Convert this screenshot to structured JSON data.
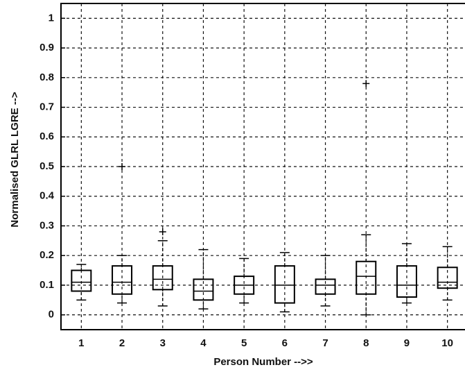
{
  "chart_data": {
    "type": "box",
    "xlabel": "Person Number -->>",
    "ylabel": "Normalised GLRL LGRE -->",
    "categories": [
      "1",
      "2",
      "3",
      "4",
      "5",
      "6",
      "7",
      "8",
      "9",
      "10"
    ],
    "boxes": [
      {
        "whislo": 0.05,
        "q1": 0.08,
        "median": 0.11,
        "q3": 0.15,
        "whishi": 0.17,
        "outliers": []
      },
      {
        "whislo": 0.04,
        "q1": 0.07,
        "median": 0.11,
        "q3": 0.165,
        "whishi": 0.2,
        "outliers": [
          0.5
        ]
      },
      {
        "whislo": 0.03,
        "q1": 0.085,
        "median": 0.12,
        "q3": 0.165,
        "whishi": 0.25,
        "outliers": [
          0.28
        ]
      },
      {
        "whislo": 0.02,
        "q1": 0.05,
        "median": 0.08,
        "q3": 0.12,
        "whishi": 0.22,
        "outliers": []
      },
      {
        "whislo": 0.04,
        "q1": 0.07,
        "median": 0.1,
        "q3": 0.13,
        "whishi": 0.19,
        "outliers": []
      },
      {
        "whislo": 0.01,
        "q1": 0.04,
        "median": 0.1,
        "q3": 0.165,
        "whishi": 0.21,
        "outliers": []
      },
      {
        "whislo": 0.03,
        "q1": 0.07,
        "median": 0.1,
        "q3": 0.12,
        "whishi": 0.2,
        "outliers": []
      },
      {
        "whislo": 0.0,
        "q1": 0.07,
        "median": 0.13,
        "q3": 0.18,
        "whishi": 0.27,
        "outliers": [
          0.78
        ]
      },
      {
        "whislo": 0.04,
        "q1": 0.06,
        "median": 0.1,
        "q3": 0.165,
        "whishi": 0.24,
        "outliers": []
      },
      {
        "whislo": 0.05,
        "q1": 0.09,
        "median": 0.11,
        "q3": 0.16,
        "whishi": 0.23,
        "outliers": []
      }
    ],
    "color": "#000000",
    "ylim": [
      -0.05,
      1.05
    ],
    "yticks": [
      0,
      0.1,
      0.2,
      0.3,
      0.4,
      0.5,
      0.6,
      0.7,
      0.8,
      0.9,
      1
    ],
    "grid": true
  }
}
